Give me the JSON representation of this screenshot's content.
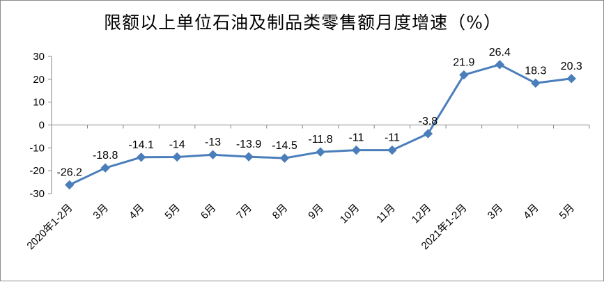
{
  "chart_data": {
    "type": "line",
    "title": "限额以上单位石油及制品类零售额月度增速（%）",
    "categories": [
      "2020年1-2月",
      "3月",
      "4月",
      "5月",
      "6月",
      "7月",
      "8月",
      "9月",
      "10月",
      "11月",
      "12月",
      "2021年1-2月",
      "3月",
      "4月",
      "5月"
    ],
    "series": [
      {
        "values": [
          -26.2,
          -18.8,
          -14.1,
          -14,
          -13,
          -13.9,
          -14.5,
          -11.8,
          -11,
          -11,
          -3.8,
          21.9,
          26.4,
          18.3,
          20.3
        ],
        "labels": [
          "-26.2",
          "-18.8",
          "-14.1",
          "-14",
          "-13",
          "-13.9",
          "-14.5",
          "-11.8",
          "-11",
          "-11",
          "-3.8",
          "21.9",
          "26.4",
          "18.3",
          "20.3"
        ],
        "color": "#4a7ebb"
      }
    ],
    "y_ticks": [
      "30",
      "20",
      "10",
      "0",
      "-10",
      "-20",
      "-30"
    ],
    "ylim": [
      -30,
      30
    ],
    "grid": false,
    "legend": "none",
    "marker": "diamond"
  }
}
